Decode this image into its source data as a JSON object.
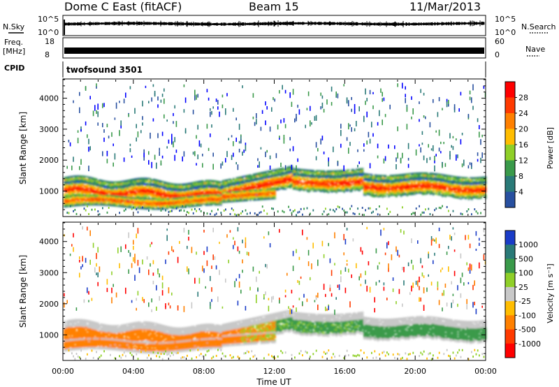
{
  "header": {
    "station": "Dome C East (fitACF)",
    "beam": "Beam 15",
    "date": "11/Mar/2013"
  },
  "nsky_panel": {
    "left_label": "N.Sky",
    "right_label": "N.Search",
    "left_ticks": [
      "10^5",
      "10^0"
    ],
    "right_ticks": [
      "10^5",
      "10^0"
    ]
  },
  "freq_panel": {
    "left_label_top": "Freq.",
    "left_label_bottom": "[MHz]",
    "right_label": "Nave",
    "left_ticks": [
      "18",
      "8"
    ],
    "right_ticks": [
      "60",
      "0"
    ]
  },
  "cpid_panel": {
    "label": "CPID",
    "value": "twofsound 3501"
  },
  "chart_data": [
    {
      "type": "heatmap",
      "name": "power",
      "ylabel": "Slant Range [km]",
      "ylim": [
        200,
        4600
      ],
      "y_ticks": [
        "4000",
        "3000",
        "2000",
        "1000"
      ],
      "y_tick_values": [
        4000,
        3000,
        2000,
        1000
      ],
      "colorbar_label": "Power [dB]",
      "colorbar_ticks": [
        "28",
        "24",
        "20",
        "16",
        "12",
        "8",
        "4"
      ],
      "colorbar_colors": [
        "#ff0000",
        "#ff3a00",
        "#ff8000",
        "#ffbd00",
        "#8fcf28",
        "#3a9a4a",
        "#2a7a78",
        "#2850a0",
        "#0000ff"
      ],
      "bands": [
        {
          "name": "main echo band",
          "range_km": [
            700,
            1400
          ],
          "value_db": 26
        },
        {
          "name": "lower echo band",
          "range_km": [
            400,
            900
          ],
          "value_db": 22
        }
      ]
    },
    {
      "type": "heatmap",
      "name": "velocity",
      "ylabel": "Slant Range [km]",
      "xlabel": "Time UT",
      "ylim": [
        200,
        4600
      ],
      "y_ticks": [
        "4000",
        "3000",
        "2000",
        "1000"
      ],
      "y_tick_values": [
        4000,
        3000,
        2000,
        1000
      ],
      "x_ticks": [
        "00:00",
        "04:00",
        "08:00",
        "12:00",
        "16:00",
        "20:00",
        "00:00"
      ],
      "x_tick_hours": [
        0,
        4,
        8,
        12,
        16,
        20,
        24
      ],
      "colorbar_label": "Velocity [m s⁻¹]",
      "colorbar_ticks": [
        "1000",
        "500",
        "100",
        "25",
        "-25",
        "-100",
        "-500",
        "-1000"
      ],
      "colorbar_colors": [
        "#1a3cc8",
        "#2a7a78",
        "#3a9a4a",
        "#8fcf28",
        "#c8c8c8",
        "#ffbd00",
        "#ff8000",
        "#ff3a00",
        "#ff0000"
      ]
    }
  ]
}
